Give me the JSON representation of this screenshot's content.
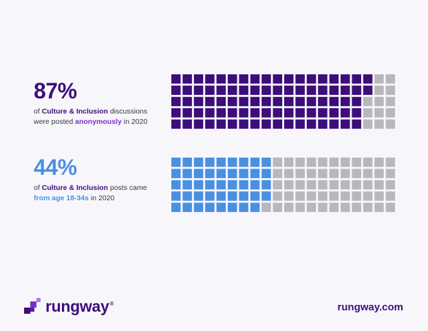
{
  "chart_data": [
    {
      "type": "waffle",
      "headline": "87%",
      "value": 87,
      "total": 100,
      "rows": 5,
      "cols": 20,
      "filled_color": "#3d0e7a",
      "empty_color": "#b8b8bc",
      "text": {
        "pre": "of ",
        "topic": "Culture & Inclusion",
        "mid": " discussions",
        "line2_pre": "were posted ",
        "highlight": "anonymously",
        "post": " in 2020"
      }
    },
    {
      "type": "waffle",
      "headline": "44%",
      "value": 44,
      "total": 100,
      "rows": 5,
      "cols": 20,
      "filled_color": "#4a90e2",
      "empty_color": "#b8b8bc",
      "text": {
        "pre": "of ",
        "topic": "Culture & Inclusion",
        "mid": " posts came",
        "line2_pre": "",
        "highlight": "from age 18-34s",
        "post": " in 2020"
      }
    }
  ],
  "brand": {
    "logo_text": "rungway",
    "registered": "®",
    "url": "rungway.com",
    "icon": "rungway-logo-icon",
    "color": "#3d0e7a"
  }
}
